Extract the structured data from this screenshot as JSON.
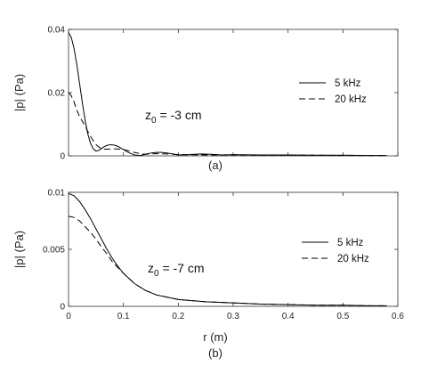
{
  "chart_data": [
    {
      "type": "line",
      "panel_label": "(a)",
      "ylabel": "|p| (Pa)",
      "xlabel": "",
      "xlim": [
        0,
        0.6
      ],
      "ylim": [
        0,
        0.04
      ],
      "y_ticks": [
        "0",
        "0.02",
        "0.04"
      ],
      "y_tick_values": [
        0,
        0.02,
        0.04
      ],
      "grid": false,
      "legend": "right",
      "annotation": {
        "main": "z",
        "sub": "0",
        "rest": " = -3 cm"
      },
      "series": [
        {
          "name": "5 kHz",
          "style": "solid",
          "x": [
            0,
            0.005,
            0.01,
            0.015,
            0.02,
            0.025,
            0.03,
            0.035,
            0.04,
            0.045,
            0.05,
            0.055,
            0.06,
            0.065,
            0.07,
            0.075,
            0.08,
            0.085,
            0.09,
            0.095,
            0.1,
            0.11,
            0.12,
            0.13,
            0.14,
            0.15,
            0.16,
            0.17,
            0.18,
            0.19,
            0.2,
            0.22,
            0.24,
            0.26,
            0.28,
            0.3,
            0.35,
            0.4,
            0.45,
            0.5,
            0.55,
            0.58
          ],
          "y": [
            0.039,
            0.0375,
            0.034,
            0.029,
            0.023,
            0.017,
            0.0115,
            0.007,
            0.004,
            0.0022,
            0.0015,
            0.0017,
            0.0023,
            0.0029,
            0.0033,
            0.0035,
            0.0035,
            0.0033,
            0.003,
            0.0025,
            0.002,
            0.001,
            0.0003,
            0.0001,
            0.0005,
            0.0009,
            0.0011,
            0.0011,
            0.0009,
            0.0006,
            0.0003,
            0.0004,
            0.0006,
            0.0005,
            0.0003,
            0.0004,
            0.0003,
            0.0003,
            0.0002,
            0.0002,
            0.0001,
            0.0001
          ]
        },
        {
          "name": "20 kHz",
          "style": "dashed",
          "x": [
            0,
            0.005,
            0.01,
            0.015,
            0.02,
            0.025,
            0.03,
            0.035,
            0.04,
            0.045,
            0.05,
            0.055,
            0.06,
            0.065,
            0.07,
            0.08,
            0.09,
            0.1,
            0.11,
            0.12,
            0.13,
            0.14,
            0.15,
            0.16,
            0.18,
            0.2,
            0.25,
            0.3,
            0.35,
            0.4,
            0.45,
            0.5,
            0.55,
            0.58
          ],
          "y": [
            0.02,
            0.019,
            0.017,
            0.0145,
            0.0125,
            0.011,
            0.0095,
            0.0078,
            0.0062,
            0.0048,
            0.0036,
            0.0028,
            0.0023,
            0.0021,
            0.0021,
            0.0022,
            0.0022,
            0.002,
            0.0016,
            0.0011,
            0.0007,
            0.0005,
            0.0006,
            0.0007,
            0.0006,
            0.0004,
            0.0003,
            0.0003,
            0.0002,
            0.0002,
            0.0002,
            0.0001,
            0.0001,
            0.0001
          ]
        }
      ]
    },
    {
      "type": "line",
      "panel_label": "(b)",
      "ylabel": "|p| (Pa)",
      "xlabel": "r (m)",
      "xlim": [
        0,
        0.6
      ],
      "ylim": [
        0,
        0.01
      ],
      "x_ticks": [
        "0",
        "0.1",
        "0.2",
        "0.3",
        "0.4",
        "0.5",
        "0.6"
      ],
      "x_tick_values": [
        0,
        0.1,
        0.2,
        0.3,
        0.4,
        0.5,
        0.6
      ],
      "y_ticks": [
        "0",
        "0.005",
        "0.01"
      ],
      "y_tick_values": [
        0,
        0.005,
        0.01
      ],
      "grid": false,
      "legend": "right",
      "annotation": {
        "main": "z",
        "sub": "0",
        "rest": " = -7 cm"
      },
      "series": [
        {
          "name": "5 kHz",
          "style": "solid",
          "x": [
            0,
            0.01,
            0.02,
            0.03,
            0.04,
            0.05,
            0.06,
            0.07,
            0.08,
            0.09,
            0.1,
            0.12,
            0.14,
            0.16,
            0.18,
            0.2,
            0.25,
            0.3,
            0.35,
            0.4,
            0.45,
            0.5,
            0.55,
            0.58
          ],
          "y": [
            0.0099,
            0.0097,
            0.0092,
            0.0085,
            0.0077,
            0.0068,
            0.0059,
            0.005,
            0.0042,
            0.0035,
            0.0029,
            0.002,
            0.0014,
            0.001,
            0.0008,
            0.0006,
            0.0004,
            0.0003,
            0.0002,
            0.00015,
            0.0001,
            0.0001,
            5e-05,
            5e-05
          ]
        },
        {
          "name": "20 kHz",
          "style": "dashed",
          "x": [
            0,
            0.01,
            0.02,
            0.03,
            0.04,
            0.05,
            0.06,
            0.07,
            0.08,
            0.09,
            0.1,
            0.12,
            0.14,
            0.16,
            0.18,
            0.2,
            0.25,
            0.3,
            0.35,
            0.4,
            0.45,
            0.5,
            0.55,
            0.58
          ],
          "y": [
            0.0079,
            0.0078,
            0.0075,
            0.007,
            0.0065,
            0.0059,
            0.0052,
            0.0046,
            0.0039,
            0.0034,
            0.0029,
            0.002,
            0.0014,
            0.001,
            0.0008,
            0.0006,
            0.0004,
            0.0003,
            0.0002,
            0.00015,
            0.0001,
            0.0001,
            5e-05,
            5e-05
          ]
        }
      ]
    }
  ]
}
